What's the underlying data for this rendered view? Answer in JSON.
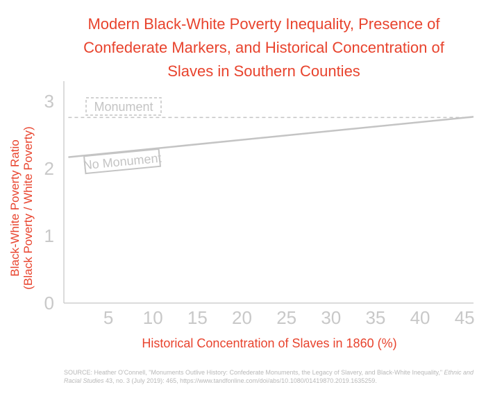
{
  "title_lines": [
    "Modern Black-White Poverty Inequality, Presence of",
    "Confederate Markers, and Historical Concentration of",
    "Slaves in Southern Counties"
  ],
  "source": {
    "prefix": "SOURCE: Heather O'Connell, \"Monuments Outlive History: Confederate Monuments, the Legacy of Slavery, and Black-White Inequality,\" ",
    "journal": "Ethnic and Racial Studies",
    "suffix": " 43, no. 3 (July 2019): 465, https://www.tandfonline.com/doi/abs/10.1080/01419870.2019.1635259."
  },
  "colors": {
    "accent": "#e8432d",
    "axis": "#cfcfcf",
    "tick_label": "#c8c8c8",
    "line": "#c4c4c4"
  },
  "chart_data": {
    "type": "line",
    "xlabel": "Historical Concentration of Slaves in 1860 (%)",
    "ylabel_lines": [
      "Black-White Poverty Ratio",
      "(Black Poverty / White Poverty)"
    ],
    "x_ticks": [
      5,
      10,
      15,
      20,
      25,
      30,
      35,
      40,
      45
    ],
    "y_ticks": [
      0,
      1,
      2,
      3
    ],
    "xlim": [
      0,
      46
    ],
    "ylim": [
      0,
      3.3
    ],
    "grid": false,
    "series": [
      {
        "name": "Monument",
        "style": "dashed",
        "x": [
          0.5,
          46
        ],
        "y": [
          2.76,
          2.76
        ]
      },
      {
        "name": "No Monument",
        "style": "solid",
        "x": [
          0.5,
          46
        ],
        "y": [
          2.17,
          2.77
        ]
      }
    ]
  }
}
